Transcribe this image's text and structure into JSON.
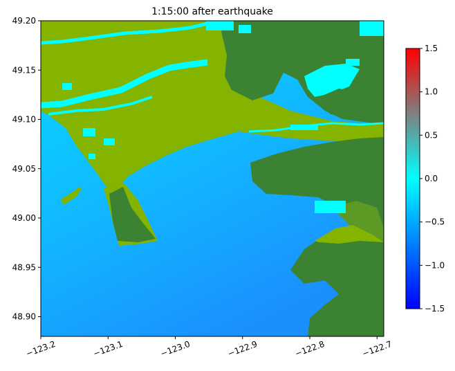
{
  "title": "1:15:00 after earthquake",
  "map": {
    "xticks": [
      {
        "v": -123.2,
        "label": "−123.2"
      },
      {
        "v": -123.1,
        "label": "−123.1"
      },
      {
        "v": -123.0,
        "label": "−123.0"
      },
      {
        "v": -122.9,
        "label": "−122.9"
      },
      {
        "v": -122.8,
        "label": "−122.8"
      },
      {
        "v": -122.7,
        "label": "−122.7"
      }
    ],
    "yticks": [
      {
        "v": 49.2,
        "label": "49.20"
      },
      {
        "v": 49.15,
        "label": "49.15"
      },
      {
        "v": 49.1,
        "label": "49.10"
      },
      {
        "v": 49.05,
        "label": "49.05"
      },
      {
        "v": 49.0,
        "label": "49.00"
      },
      {
        "v": 48.95,
        "label": "48.95"
      },
      {
        "v": 48.9,
        "label": "48.90"
      }
    ],
    "xlim": [
      -123.2,
      -122.69
    ],
    "ylim": [
      48.88,
      49.2
    ],
    "colors": {
      "water_deep": "#1a90ff",
      "water_mid": "#14b2ff",
      "water_shallow": "#06d8ff",
      "flooded": "#00ffff",
      "lowland": "#84b300",
      "lowland_dark": "#6aa313",
      "upland": "#3b8232",
      "upland_light": "#5c9a25"
    }
  },
  "colorbar": {
    "ticks": [
      {
        "v": 1.5,
        "label": "1.5"
      },
      {
        "v": 1.0,
        "label": "1.0"
      },
      {
        "v": 0.5,
        "label": "0.5"
      },
      {
        "v": 0.0,
        "label": "0.0"
      },
      {
        "v": -0.5,
        "label": "−0.5"
      },
      {
        "v": -1.0,
        "label": "−1.0"
      },
      {
        "v": -1.5,
        "label": "−1.5"
      }
    ],
    "range": [
      -1.5,
      1.5
    ],
    "colors": [
      "#0000ff",
      "#00ffff",
      "#ff0000"
    ]
  }
}
